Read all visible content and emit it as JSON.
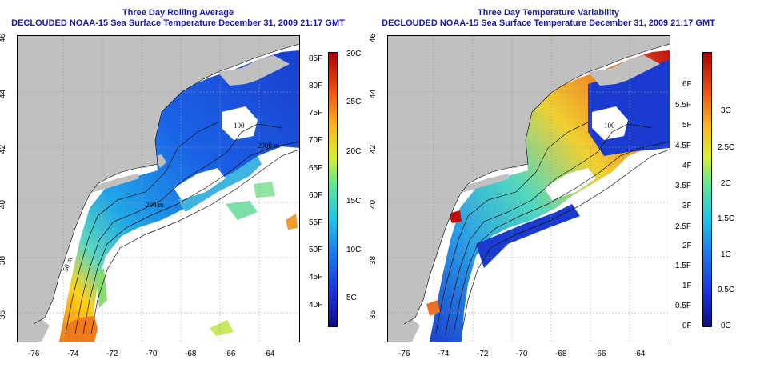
{
  "left_panel": {
    "title_line1": "Three Day Rolling Average",
    "title_line2": "DECLOUDED NOAA-15 Sea Surface Temperature December 31, 2009 21:17 GMT",
    "colorbar_f": [
      "85F",
      "80F",
      "75F",
      "70F",
      "65F",
      "60F",
      "55F",
      "50F",
      "45F",
      "40F"
    ],
    "colorbar_c": [
      "30C",
      "25C",
      "20C",
      "15C",
      "10C",
      "5C"
    ]
  },
  "right_panel": {
    "title_line1": "Three Day Temperature Variability",
    "title_line2": "DECLOUDED NOAA-15 Sea Surface Temperature December 31, 2009 21:17 GMT",
    "colorbar_f": [
      "6F",
      "5.5F",
      "5F",
      "4.5F",
      "4F",
      "3.5F",
      "3F",
      "2.5F",
      "2F",
      "1.5F",
      "1F",
      "0.5F",
      "0F"
    ],
    "colorbar_c": [
      "3C",
      "2.5C",
      "2C",
      "1.5C",
      "1C",
      "0.5C",
      "0C"
    ]
  },
  "lon_labels": [
    "-76",
    "-74",
    "-72",
    "-70",
    "-68",
    "-66",
    "-64"
  ],
  "lat_labels": [
    "46",
    "44",
    "42",
    "40",
    "38",
    "36"
  ],
  "contour_labels": [
    "100",
    "2000 m",
    "200 m",
    "50 m"
  ],
  "colors": {
    "land": "#c0c0c0",
    "title": "#1a1aa6",
    "coast": "#000000"
  }
}
